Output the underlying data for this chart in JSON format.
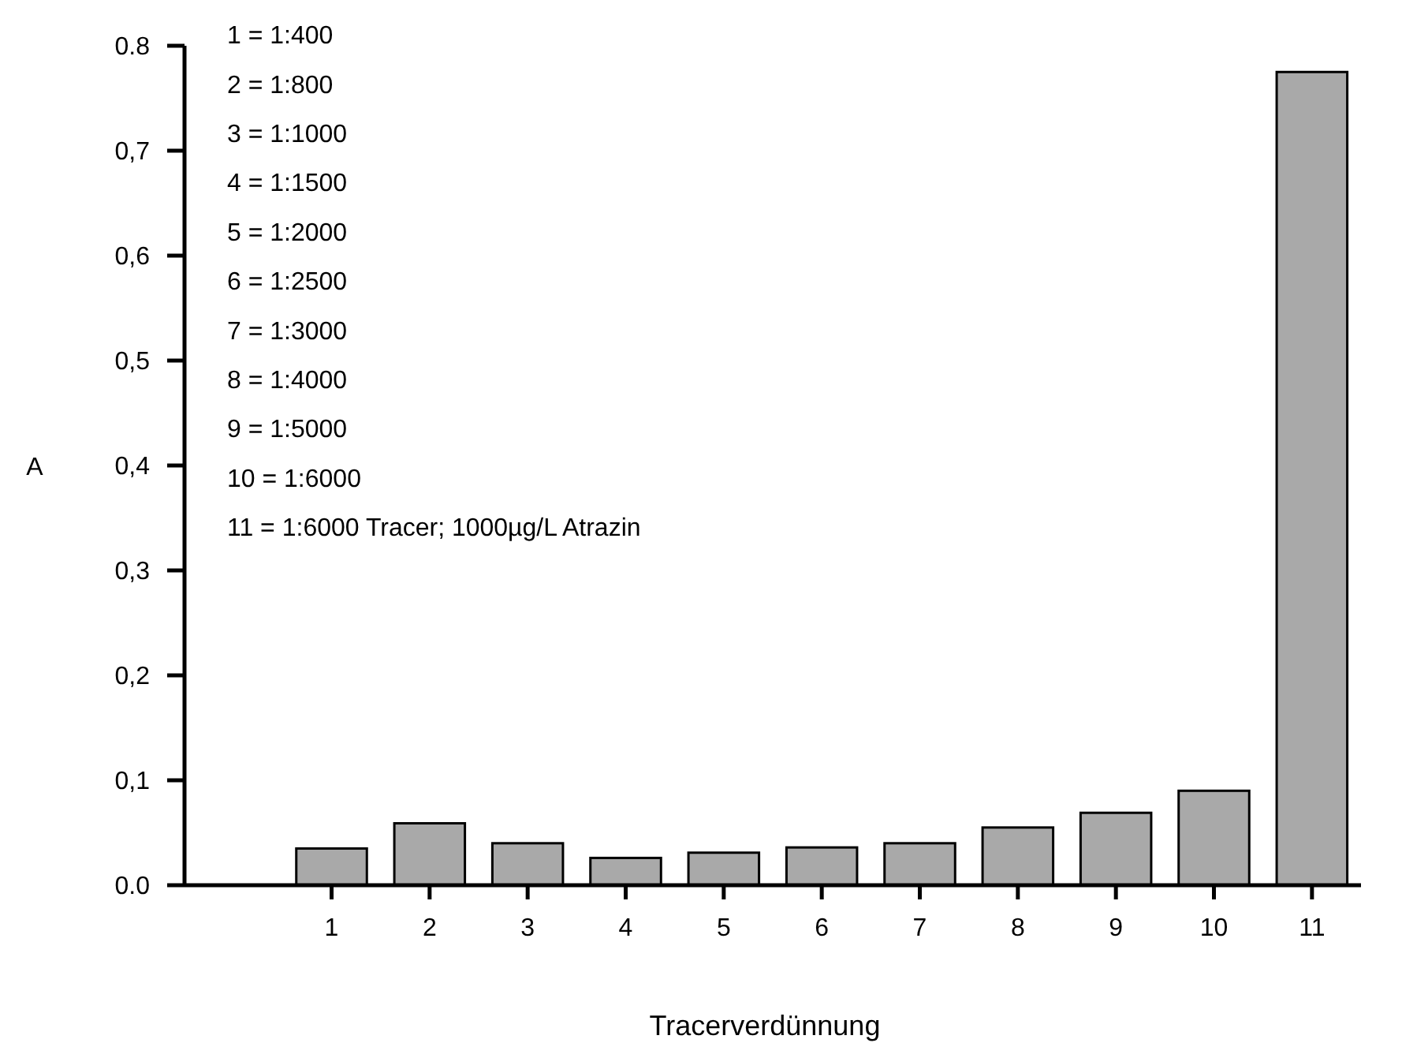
{
  "chart_data": {
    "type": "bar",
    "xlabel": "Tracerverdünnung",
    "ylabel": "A",
    "categories": [
      null,
      "1",
      "2",
      "3",
      "4",
      "5",
      "6",
      "7",
      "8",
      "9",
      "10",
      "11"
    ],
    "values": [
      null,
      0.035,
      0.059,
      0.04,
      0.026,
      0.031,
      0.036,
      0.04,
      0.055,
      0.069,
      0.09,
      0.775
    ],
    "color": "#a9a9a9",
    "ylim": [
      0,
      0.8
    ],
    "yticks": [
      {
        "value": 0,
        "label": "0.0"
      },
      {
        "value": 0.1,
        "label": "0,1"
      },
      {
        "value": 0.2,
        "label": "0,2"
      },
      {
        "value": 0.3,
        "label": "0,3"
      },
      {
        "value": 0.4,
        "label": "0,4"
      },
      {
        "value": 0.5,
        "label": "0,5"
      },
      {
        "value": 0.6,
        "label": "0,6"
      },
      {
        "value": 0.7,
        "label": "0,7"
      },
      {
        "value": 0.8,
        "label": "0.8"
      }
    ],
    "grid": false,
    "annotations": [
      "1 = 1:400",
      "2 = 1:800",
      "3 = 1:1000",
      "4 = 1:1500",
      "5 = 1:2000",
      "6 = 1:2500",
      "7 = 1:3000",
      "8 = 1:4000",
      "9 = 1:5000",
      "10 = 1:6000",
      "11 = 1:6000 Tracer; 1000µg/L Atrazin"
    ]
  }
}
